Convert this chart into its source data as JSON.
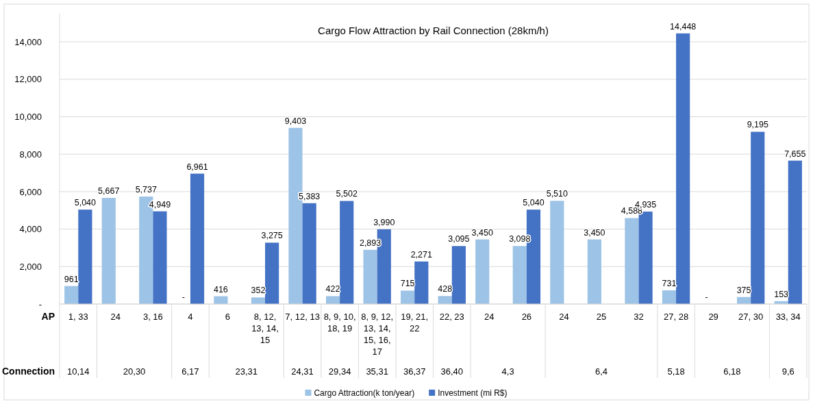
{
  "chart_data": {
    "type": "bar",
    "title": "Cargo Flow Attraction by Rail Connection (28km/h)",
    "categories": [
      "1, 33",
      "24",
      "3, 16",
      "4",
      "6",
      "8, 12, 13, 14, 15",
      "7, 12, 13",
      "8, 9, 10, 18, 19",
      "8, 9, 12, 13, 14, 15, 16, 17",
      "19, 21, 22",
      "22, 23",
      "24",
      "26",
      "24",
      "25",
      "32",
      "27, 28",
      "29",
      "27, 30",
      "33, 34"
    ],
    "series": [
      {
        "name": "Cargo Attraction(k ton/year)",
        "color": "#9dc3e6",
        "values": [
          961,
          5667,
          5737,
          0,
          416,
          352,
          9403,
          422,
          2893,
          715,
          428,
          3450,
          3098,
          5510,
          3450,
          4588,
          731,
          0,
          375,
          153
        ],
        "value_labels": [
          "961",
          "5,667",
          "5,737",
          "-",
          "416",
          "352",
          "9,403",
          "422",
          "2,893",
          "715",
          "428",
          "3,450",
          "3,098",
          "5,510",
          "3,450",
          "4,588",
          "731",
          "-",
          "375",
          "153"
        ]
      },
      {
        "name": "Investment (mi R$)",
        "color": "#4472c4",
        "values": [
          5040,
          null,
          4949,
          6961,
          null,
          3275,
          5383,
          5502,
          3990,
          2271,
          3095,
          null,
          5040,
          null,
          null,
          4935,
          14448,
          null,
          9195,
          7655
        ],
        "value_labels": [
          "5,040",
          null,
          "4,949",
          "6,961",
          null,
          "3,275",
          "5,383",
          "5,502",
          "3,990",
          "2,271",
          "3,095",
          null,
          "5,040",
          null,
          null,
          "4,935",
          "14,448",
          null,
          "9,195",
          "7,655"
        ]
      }
    ],
    "ylim": [
      0,
      15500
    ],
    "yticks": [
      {
        "value": 0,
        "label": "-"
      },
      {
        "value": 2000,
        "label": "2,000"
      },
      {
        "value": 4000,
        "label": "4,000"
      },
      {
        "value": 6000,
        "label": "6,000"
      },
      {
        "value": 8000,
        "label": "8,000"
      },
      {
        "value": 10000,
        "label": "10,000"
      },
      {
        "value": 12000,
        "label": "12,000"
      },
      {
        "value": 14000,
        "label": "14,000"
      }
    ],
    "grid": "y",
    "legend": "bottom",
    "annotations": [
      "AP",
      "Connection",
      "10,14",
      "20,30",
      "6,17",
      "23,31",
      "24,31",
      "29,34",
      "35,31",
      "36,37",
      "36,40",
      "4,3",
      "6,4",
      "5,18",
      "6,18",
      "9,6"
    ]
  }
}
